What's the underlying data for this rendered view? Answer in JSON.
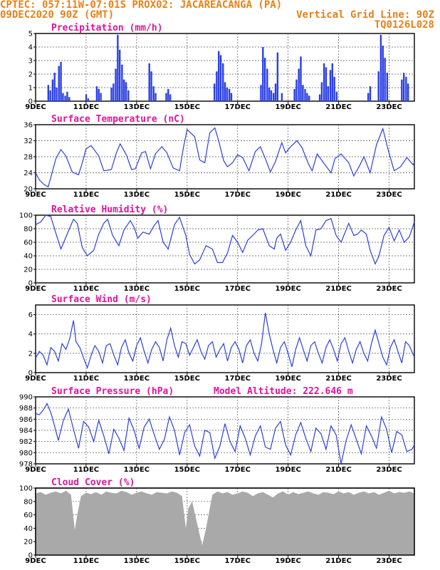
{
  "header": {
    "line1": "CPTEC:  057:11W-07:01S  PROX02: JACAREACANGA (PA)",
    "line2_left": "09DEC2020 90Z (GMT)",
    "line2_right": "Vertical Grid Line: 90Z",
    "line3_right": "TQ0126L028"
  },
  "colors": {
    "series": "#2b3fe6",
    "cloud": "#a9a9a9",
    "title": "#e0149a",
    "header": "#e8801a"
  },
  "chart_data": [
    {
      "type": "bar",
      "title": "Precipitation (mm/h)",
      "xrange": [
        0,
        15
      ],
      "ylim": [
        0,
        5
      ],
      "yticks": [
        0,
        1,
        2,
        3,
        4,
        5
      ],
      "x_tick_labels": [
        "9DEC",
        "11DEC",
        "13DEC",
        "15DEC",
        "17DEC",
        "19DEC",
        "21DEC",
        "23DEC"
      ],
      "x_tick_days": [
        0,
        2,
        4,
        6,
        8,
        10,
        12,
        14
      ],
      "grid": true,
      "x": [
        0.5,
        0.58,
        0.67,
        0.75,
        0.83,
        0.92,
        1.0,
        1.08,
        1.17,
        1.25,
        1.33,
        2.0,
        2.08,
        2.42,
        2.5,
        2.58,
        3.0,
        3.08,
        3.17,
        3.25,
        3.33,
        3.42,
        3.5,
        3.58,
        3.67,
        4.5,
        4.58,
        4.67,
        4.75,
        5.17,
        5.25,
        5.33,
        7.08,
        7.17,
        7.25,
        7.33,
        7.42,
        7.5,
        7.58,
        7.67,
        7.75,
        8.92,
        9.0,
        9.08,
        9.17,
        9.25,
        9.33,
        9.42,
        9.5,
        9.58,
        9.75,
        10.25,
        10.33,
        10.42,
        10.5,
        10.58,
        10.67,
        10.75,
        10.83,
        11.25,
        11.33,
        11.42,
        11.5,
        11.58,
        11.67,
        11.75,
        11.83,
        11.92,
        13.17,
        13.25,
        13.58,
        13.67,
        13.75,
        13.83,
        13.92,
        14.5,
        14.58,
        14.67,
        14.75
      ],
      "values": [
        1.2,
        0.8,
        1.6,
        2.1,
        1.0,
        2.6,
        2.9,
        0.6,
        0.4,
        0.7,
        0.3,
        0.5,
        0.2,
        1.1,
        0.9,
        0.6,
        1.0,
        1.3,
        2.4,
        4.9,
        3.8,
        2.7,
        1.6,
        1.4,
        0.8,
        2.8,
        2.2,
        1.1,
        0.6,
        0.6,
        0.9,
        0.5,
        1.3,
        2.2,
        3.7,
        3.4,
        2.8,
        1.4,
        1.0,
        0.9,
        0.6,
        1.2,
        4.0,
        3.2,
        2.4,
        1.0,
        0.8,
        0.6,
        1.3,
        3.6,
        0.6,
        0.9,
        1.6,
        2.4,
        3.3,
        1.2,
        0.9,
        0.6,
        0.4,
        0.5,
        1.4,
        2.8,
        2.5,
        1.1,
        2.3,
        2.8,
        1.8,
        0.7,
        0.6,
        1.1,
        2.2,
        4.9,
        4.1,
        3.2,
        2.1,
        1.6,
        2.1,
        1.8,
        1.3
      ]
    },
    {
      "type": "line",
      "title": "Surface Temperature (nC)",
      "xrange": [
        0,
        15
      ],
      "ylim": [
        20,
        36
      ],
      "yticks": [
        20,
        24,
        28,
        32,
        36
      ],
      "x_tick_labels": [
        "9DEC",
        "11DEC",
        "13DEC",
        "15DEC",
        "17DEC",
        "19DEC",
        "21DEC",
        "23DEC"
      ],
      "x_tick_days": [
        0,
        2,
        4,
        6,
        8,
        10,
        12,
        14
      ],
      "grid": true,
      "x": [
        0,
        0.15,
        0.35,
        0.5,
        0.6,
        0.8,
        1.0,
        1.2,
        1.45,
        1.7,
        1.85,
        2.0,
        2.2,
        2.5,
        2.7,
        3.0,
        3.2,
        3.35,
        3.6,
        3.8,
        3.95,
        4.2,
        4.35,
        4.55,
        4.75,
        5.0,
        5.2,
        5.45,
        5.7,
        5.85,
        6.0,
        6.3,
        6.5,
        6.7,
        6.9,
        7.1,
        7.25,
        7.45,
        7.6,
        7.8,
        8.0,
        8.2,
        8.45,
        8.7,
        8.9,
        9.1,
        9.3,
        9.5,
        9.75,
        9.9,
        10.1,
        10.35,
        10.55,
        10.8,
        10.95,
        11.15,
        11.4,
        11.7,
        11.85,
        12.1,
        12.4,
        12.6,
        12.85,
        13.0,
        13.25,
        13.5,
        13.75,
        13.95,
        14.2,
        14.45,
        14.7,
        14.95,
        15.0
      ],
      "y": [
        24.0,
        22.2,
        21.0,
        20.5,
        22.8,
        27.5,
        29.8,
        28.2,
        24.2,
        23.5,
        26.5,
        30.0,
        30.8,
        28.2,
        24.5,
        24.8,
        29.0,
        31.2,
        28.4,
        24.8,
        25.0,
        29.0,
        29.3,
        25.0,
        28.8,
        30.5,
        29.0,
        25.2,
        24.5,
        30.2,
        34.8,
        33.0,
        27.2,
        26.5,
        34.0,
        35.2,
        32.0,
        27.0,
        25.5,
        26.5,
        28.5,
        27.8,
        24.5,
        29.3,
        30.5,
        27.5,
        24.2,
        26.8,
        31.5,
        29.0,
        30.5,
        32.0,
        30.3,
        26.3,
        24.5,
        28.7,
        26.5,
        24.0,
        27.5,
        28.7,
        26.5,
        23.2,
        26.0,
        28.0,
        24.0,
        31.0,
        35.0,
        30.0,
        24.5,
        25.5,
        27.8,
        26.0,
        26.6
      ]
    },
    {
      "type": "line",
      "title": "Relative Humidity (%)",
      "xrange": [
        0,
        15
      ],
      "ylim": [
        0,
        100
      ],
      "yticks": [
        0,
        20,
        40,
        60,
        80,
        100
      ],
      "x_tick_labels": [
        "9DEC",
        "11DEC",
        "13DEC",
        "15DEC",
        "17DEC",
        "19DEC",
        "21DEC",
        "23DEC"
      ],
      "x_tick_days": [
        0,
        2,
        4,
        6,
        8,
        10,
        12,
        14
      ],
      "grid": true,
      "x": [
        0,
        0.2,
        0.4,
        0.6,
        0.85,
        1.0,
        1.25,
        1.5,
        1.65,
        1.85,
        2.05,
        2.3,
        2.5,
        2.7,
        2.85,
        3.05,
        3.3,
        3.5,
        3.75,
        3.9,
        4.05,
        4.25,
        4.5,
        4.7,
        4.85,
        5.05,
        5.25,
        5.5,
        5.7,
        5.95,
        6.1,
        6.3,
        6.5,
        6.75,
        7.0,
        7.2,
        7.4,
        7.6,
        7.8,
        8.0,
        8.2,
        8.4,
        8.6,
        8.8,
        9.0,
        9.25,
        9.45,
        9.55,
        9.7,
        9.9,
        10.1,
        10.3,
        10.5,
        10.7,
        10.9,
        11.1,
        11.3,
        11.5,
        11.7,
        11.9,
        12.1,
        12.4,
        12.6,
        12.75,
        12.9,
        13.1,
        13.25,
        13.45,
        13.6,
        13.8,
        14.0,
        14.2,
        14.4,
        14.6,
        14.8,
        15.0
      ],
      "y": [
        86,
        90,
        100,
        98,
        68,
        50,
        72,
        94,
        88,
        52,
        40,
        48,
        72,
        88,
        94,
        70,
        55,
        78,
        92,
        82,
        66,
        75,
        72,
        85,
        92,
        60,
        50,
        86,
        97,
        70,
        42,
        28,
        34,
        55,
        50,
        30,
        30,
        44,
        70,
        60,
        45,
        63,
        70,
        78,
        80,
        55,
        50,
        66,
        72,
        48,
        60,
        78,
        92,
        55,
        40,
        78,
        80,
        92,
        95,
        70,
        60,
        88,
        70,
        72,
        78,
        72,
        48,
        28,
        40,
        70,
        82,
        62,
        78,
        60,
        68,
        90
      ]
    },
    {
      "type": "line",
      "title": "Surface Wind (m/s)",
      "xrange": [
        0,
        15
      ],
      "ylim": [
        0,
        7
      ],
      "yticks": [
        0,
        2,
        4,
        6
      ],
      "x_tick_labels": [
        "9DEC",
        "11DEC",
        "13DEC",
        "15DEC",
        "17DEC",
        "19DEC",
        "21DEC",
        "23DEC"
      ],
      "x_tick_days": [
        0,
        2,
        4,
        6,
        8,
        10,
        12,
        14
      ],
      "grid": true,
      "x": [
        0,
        0.15,
        0.3,
        0.45,
        0.6,
        0.75,
        0.9,
        1.05,
        1.2,
        1.35,
        1.5,
        1.6,
        1.75,
        1.9,
        2.05,
        2.2,
        2.35,
        2.5,
        2.65,
        2.8,
        2.95,
        3.1,
        3.25,
        3.4,
        3.55,
        3.7,
        3.85,
        4.0,
        4.15,
        4.3,
        4.45,
        4.6,
        4.75,
        4.9,
        5.05,
        5.2,
        5.35,
        5.5,
        5.65,
        5.8,
        5.95,
        6.1,
        6.25,
        6.4,
        6.55,
        6.7,
        6.85,
        7.0,
        7.15,
        7.3,
        7.45,
        7.6,
        7.75,
        7.9,
        8.05,
        8.2,
        8.35,
        8.5,
        8.65,
        8.8,
        8.95,
        9.1,
        9.25,
        9.4,
        9.55,
        9.7,
        9.85,
        10.0,
        10.15,
        10.3,
        10.45,
        10.6,
        10.75,
        10.9,
        11.05,
        11.2,
        11.35,
        11.5,
        11.65,
        11.8,
        11.95,
        12.1,
        12.25,
        12.4,
        12.55,
        12.7,
        12.85,
        13.0,
        13.15,
        13.3,
        13.45,
        13.6,
        13.75,
        13.9,
        14.05,
        14.2,
        14.35,
        14.5,
        14.65,
        14.8,
        15.0
      ],
      "y": [
        1.5,
        2.2,
        1.8,
        0.8,
        2.6,
        2.2,
        1.2,
        3.0,
        2.4,
        3.5,
        5.4,
        3.2,
        2.6,
        1.5,
        0.5,
        1.8,
        2.8,
        2.2,
        1.0,
        2.8,
        3.0,
        1.8,
        0.8,
        2.6,
        3.4,
        2.0,
        1.2,
        2.8,
        3.6,
        2.2,
        1.0,
        2.4,
        3.2,
        2.6,
        1.2,
        3.4,
        4.6,
        2.8,
        1.6,
        3.2,
        3.0,
        1.8,
        2.6,
        3.4,
        2.2,
        1.4,
        2.8,
        3.2,
        1.6,
        2.4,
        3.0,
        1.2,
        2.6,
        3.2,
        2.4,
        1.0,
        2.8,
        3.4,
        2.0,
        1.2,
        3.0,
        6.2,
        4.0,
        2.4,
        1.0,
        2.6,
        3.2,
        2.0,
        0.6,
        2.4,
        3.6,
        2.4,
        1.2,
        2.8,
        3.2,
        2.0,
        1.0,
        2.6,
        3.4,
        2.4,
        1.2,
        3.0,
        3.6,
        2.2,
        1.0,
        2.4,
        3.2,
        2.0,
        1.2,
        3.0,
        4.4,
        3.0,
        1.6,
        0.8,
        2.6,
        3.4,
        2.2,
        1.0,
        3.2,
        2.8,
        1.6
      ]
    },
    {
      "type": "line",
      "title": "Surface Pressure (hPa)",
      "annotation": "Model Altitude: 222.646 m",
      "xrange": [
        0,
        15
      ],
      "ylim": [
        978,
        990
      ],
      "yticks": [
        978,
        980,
        982,
        984,
        986,
        988,
        990
      ],
      "x_tick_labels": [
        "9DEC",
        "11DEC",
        "13DEC",
        "15DEC",
        "17DEC",
        "19DEC",
        "21DEC",
        "23DEC"
      ],
      "x_tick_days": [
        0,
        2,
        4,
        6,
        8,
        10,
        12,
        14
      ],
      "grid": true,
      "x": [
        0,
        0.15,
        0.3,
        0.45,
        0.6,
        0.75,
        0.9,
        1.1,
        1.3,
        1.5,
        1.7,
        1.9,
        2.1,
        2.3,
        2.5,
        2.7,
        2.9,
        3.1,
        3.3,
        3.5,
        3.7,
        3.9,
        4.1,
        4.3,
        4.5,
        4.7,
        4.9,
        5.1,
        5.3,
        5.5,
        5.7,
        5.9,
        6.1,
        6.3,
        6.5,
        6.7,
        6.9,
        7.1,
        7.3,
        7.5,
        7.7,
        7.9,
        8.1,
        8.3,
        8.5,
        8.7,
        8.9,
        9.1,
        9.3,
        9.5,
        9.7,
        9.9,
        10.1,
        10.3,
        10.5,
        10.7,
        10.9,
        11.1,
        11.3,
        11.5,
        11.7,
        11.9,
        12.1,
        12.3,
        12.5,
        12.7,
        12.9,
        13.1,
        13.3,
        13.5,
        13.7,
        13.9,
        14.1,
        14.3,
        14.5,
        14.7,
        14.9,
        15.0
      ],
      "y": [
        987.0,
        986.8,
        987.6,
        988.8,
        987.2,
        984.8,
        982.2,
        985.8,
        987.8,
        984.2,
        980.8,
        985.6,
        984.6,
        982.0,
        985.8,
        983.0,
        979.8,
        984.2,
        982.6,
        980.4,
        986.2,
        984.0,
        980.8,
        984.6,
        986.0,
        983.2,
        980.6,
        982.4,
        986.4,
        984.0,
        979.6,
        983.6,
        985.0,
        981.2,
        979.4,
        984.0,
        983.6,
        979.0,
        981.2,
        985.2,
        982.0,
        980.2,
        984.8,
        982.6,
        979.6,
        983.0,
        984.8,
        981.0,
        980.6,
        984.4,
        985.6,
        981.4,
        979.6,
        983.2,
        985.4,
        982.6,
        980.2,
        984.4,
        983.4,
        980.6,
        984.8,
        983.2,
        978.0,
        982.2,
        985.0,
        982.4,
        979.8,
        984.8,
        983.0,
        980.8,
        986.4,
        984.2,
        980.0,
        983.8,
        983.2,
        980.2,
        980.6,
        981.4
      ]
    },
    {
      "type": "area",
      "title": "Cloud Cover (%)",
      "xrange": [
        0,
        15
      ],
      "ylim": [
        0,
        100
      ],
      "yticks": [
        0,
        20,
        40,
        60,
        80,
        100
      ],
      "x_tick_labels": [
        "9DEC",
        "11DEC",
        "13DEC",
        "15DEC",
        "17DEC",
        "19DEC",
        "21DEC",
        "23DEC"
      ],
      "x_tick_days": [
        0,
        2,
        4,
        6,
        8,
        10,
        12,
        14
      ],
      "grid": true,
      "x": [
        0,
        0.2,
        0.4,
        0.6,
        0.8,
        1.0,
        1.2,
        1.4,
        1.55,
        1.65,
        1.8,
        2.0,
        2.2,
        2.4,
        2.6,
        2.8,
        3.0,
        3.2,
        3.4,
        3.6,
        3.8,
        4.0,
        4.2,
        4.4,
        4.6,
        4.8,
        5.0,
        5.2,
        5.4,
        5.6,
        5.8,
        5.95,
        6.05,
        6.2,
        6.35,
        6.5,
        6.6,
        6.75,
        6.9,
        7.0,
        7.2,
        7.4,
        7.6,
        7.8,
        8.0,
        8.2,
        8.4,
        8.6,
        8.8,
        9.0,
        9.2,
        9.4,
        9.6,
        9.8,
        10.0,
        10.2,
        10.4,
        10.6,
        10.8,
        11.0,
        11.2,
        11.4,
        11.6,
        11.8,
        12.0,
        12.2,
        12.4,
        12.6,
        12.8,
        13.0,
        13.2,
        13.4,
        13.6,
        13.8,
        14.0,
        14.2,
        14.4,
        14.6,
        14.8,
        15.0
      ],
      "y": [
        92,
        94,
        90,
        93,
        95,
        92,
        96,
        90,
        38,
        60,
        88,
        93,
        91,
        94,
        90,
        95,
        93,
        92,
        96,
        94,
        90,
        93,
        95,
        92,
        90,
        94,
        93,
        92,
        95,
        93,
        88,
        40,
        70,
        80,
        55,
        30,
        15,
        40,
        70,
        90,
        95,
        92,
        94,
        90,
        92,
        95,
        93,
        88,
        92,
        94,
        90,
        86,
        92,
        95,
        90,
        94,
        91,
        93,
        95,
        92,
        90,
        94,
        93,
        91,
        95,
        92,
        94,
        90,
        93,
        95,
        92,
        94,
        90,
        93,
        96,
        92,
        94,
        93,
        95,
        92
      ]
    }
  ]
}
